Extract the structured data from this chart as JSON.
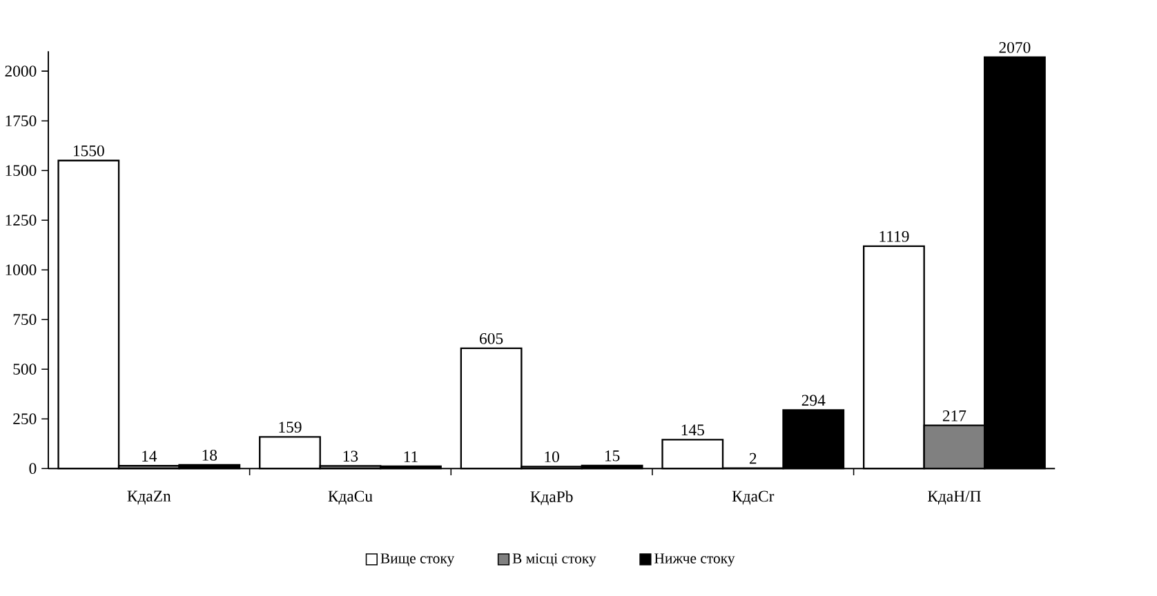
{
  "chart_data": {
    "type": "bar",
    "categories": [
      "КдаZn",
      "КдаCu",
      "КдаPb",
      "КдаCr",
      "КдаН/П"
    ],
    "series": [
      {
        "name": "Вище стоку",
        "color": "#ffffff",
        "values": [
          1550,
          159,
          605,
          145,
          1119
        ]
      },
      {
        "name": "В місці стоку",
        "color": "#808080",
        "values": [
          14,
          13,
          10,
          2,
          217
        ]
      },
      {
        "name": "Нижче стоку",
        "color": "#000000",
        "values": [
          18,
          11,
          15,
          294,
          2070
        ]
      }
    ],
    "ylim": [
      0,
      2100
    ],
    "yticks": [
      0,
      250,
      500,
      750,
      1000,
      1250,
      1500,
      1750,
      2000
    ],
    "data_labels": true,
    "grid": false,
    "legend": "bottom"
  }
}
